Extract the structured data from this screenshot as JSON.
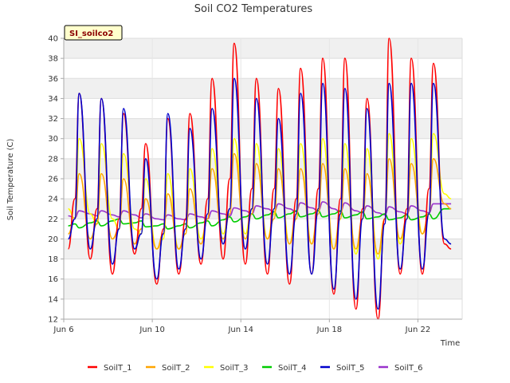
{
  "chart_data": {
    "type": "line",
    "title": "Soil CO2 Temperatures",
    "site_label": "SI_soilco2",
    "xlabel": "Time",
    "ylabel": "Soil Temperature (C)",
    "xlim": [
      6.0,
      24.0
    ],
    "ylim": [
      12,
      40
    ],
    "x_ticks": [
      {
        "value": 6,
        "label": "Jun 6"
      },
      {
        "value": 10,
        "label": "Jun 10"
      },
      {
        "value": 14,
        "label": "Jun 14"
      },
      {
        "value": 18,
        "label": "Jun 18"
      },
      {
        "value": 22,
        "label": "Jun 22"
      }
    ],
    "y_ticks": [
      12,
      14,
      16,
      18,
      20,
      22,
      24,
      26,
      28,
      30,
      32,
      34,
      36,
      38,
      40
    ],
    "grid": true,
    "legend_position": "bottom",
    "series": [
      {
        "name": "SoilT_1",
        "color": "#ff0000"
      },
      {
        "name": "SoilT_2",
        "color": "#ffa500"
      },
      {
        "name": "SoilT_3",
        "color": "#ffff00"
      },
      {
        "name": "SoilT_4",
        "color": "#00cc00"
      },
      {
        "name": "SoilT_5",
        "color": "#0000cc"
      },
      {
        "name": "SoilT_6",
        "color": "#9932cc"
      }
    ],
    "x_days": [
      6.2,
      6.5,
      6.7,
      7.2,
      7.5,
      7.7,
      8.2,
      8.5,
      8.7,
      9.2,
      9.5,
      9.7,
      10.2,
      10.5,
      10.7,
      11.2,
      11.5,
      11.7,
      12.2,
      12.5,
      12.7,
      13.2,
      13.5,
      13.7,
      14.2,
      14.5,
      14.7,
      15.2,
      15.5,
      15.7,
      16.2,
      16.5,
      16.7,
      17.2,
      17.5,
      17.7,
      18.2,
      18.5,
      18.7,
      19.2,
      19.5,
      19.7,
      20.2,
      20.5,
      20.7,
      21.2,
      21.5,
      21.7,
      22.2,
      22.5,
      22.7,
      23.2,
      23.5
    ],
    "values": {
      "SoilT_1": [
        19,
        24,
        34.5,
        18,
        23,
        34,
        16.5,
        22,
        32.5,
        18.5,
        23,
        29.5,
        15.5,
        21,
        32,
        16.5,
        22,
        32.5,
        17.5,
        24,
        36,
        18,
        26,
        39.5,
        17.5,
        25,
        36,
        16.5,
        25,
        35,
        15.5,
        24,
        37,
        16.5,
        25,
        38,
        14.5,
        24,
        38,
        13,
        23,
        34,
        12,
        22,
        40,
        16.5,
        23,
        38,
        16.5,
        25,
        37.5,
        19.5,
        19
      ],
      "SoilT_2": [
        20.5,
        22,
        26.5,
        20,
        21.5,
        26.5,
        20,
        21,
        26,
        19.5,
        21,
        24,
        19,
        20.5,
        24.5,
        19,
        20.5,
        25,
        19.5,
        22,
        27,
        20,
        22.5,
        28.5,
        20,
        22.5,
        27.5,
        20,
        22,
        27,
        19.5,
        22,
        27,
        19.5,
        22.5,
        27.5,
        19,
        22,
        27,
        19,
        22,
        26.5,
        18.5,
        22,
        28,
        20,
        22,
        27.5,
        20.5,
        22.5,
        28,
        23.5,
        23
      ],
      "SoilT_3": [
        23,
        22,
        30,
        22.5,
        21.5,
        29.5,
        22,
        21,
        28.5,
        21,
        20.5,
        26,
        19,
        20,
        26.5,
        19,
        20.5,
        27,
        20,
        22,
        29,
        20.5,
        23,
        30,
        20.5,
        23,
        29.5,
        20,
        22.5,
        29,
        19.5,
        22.5,
        29.5,
        19.5,
        23,
        30,
        19,
        22.5,
        29.5,
        18.5,
        22,
        29,
        18,
        22,
        30.5,
        19.5,
        22,
        30,
        20.5,
        22.5,
        30.5,
        24.5,
        24
      ],
      "SoilT_4": [
        21.3,
        21.5,
        21.1,
        21.6,
        21.8,
        21.3,
        21.8,
        22.0,
        21.5,
        21.6,
        21.8,
        21.2,
        21.3,
        21.5,
        21.0,
        21.3,
        21.5,
        21.1,
        21.6,
        21.8,
        21.3,
        21.9,
        22.2,
        21.7,
        22.2,
        22.5,
        22.0,
        22.4,
        22.7,
        22.1,
        22.5,
        22.8,
        22.2,
        22.5,
        22.8,
        22.2,
        22.5,
        22.8,
        22.1,
        22.4,
        22.7,
        22.0,
        22.2,
        22.5,
        21.9,
        22.1,
        22.4,
        21.9,
        22.2,
        22.5,
        22.0,
        23.0,
        23.0
      ],
      "SoilT_5": [
        20,
        22,
        34.5,
        19,
        22,
        34,
        17.5,
        21,
        33,
        19,
        20.5,
        28,
        16,
        20.5,
        32.5,
        17,
        21,
        31,
        18,
        22.5,
        33,
        19.5,
        23,
        36,
        19,
        23,
        34,
        17.5,
        23,
        32,
        16.5,
        22.5,
        34.5,
        16.5,
        23,
        35.5,
        15,
        22.5,
        35,
        14,
        22,
        33,
        13,
        21.5,
        35.5,
        17,
        22,
        35.5,
        17,
        22.5,
        35.5,
        20,
        19.5
      ],
      "SoilT_6": [
        22.3,
        22.1,
        22.8,
        22.5,
        22.3,
        22.8,
        22.4,
        22.2,
        22.8,
        22.4,
        22.1,
        22.5,
        22.0,
        21.9,
        22.4,
        22.0,
        21.9,
        22.5,
        22.2,
        22.0,
        22.8,
        22.5,
        22.3,
        23.1,
        22.8,
        22.5,
        23.3,
        23.0,
        22.7,
        23.5,
        23.0,
        22.7,
        23.6,
        23.1,
        22.8,
        23.7,
        23.0,
        22.7,
        23.6,
        22.8,
        22.6,
        23.3,
        22.6,
        22.4,
        23.2,
        22.7,
        22.5,
        23.3,
        22.8,
        22.6,
        23.5,
        23.5,
        23.5
      ]
    }
  }
}
